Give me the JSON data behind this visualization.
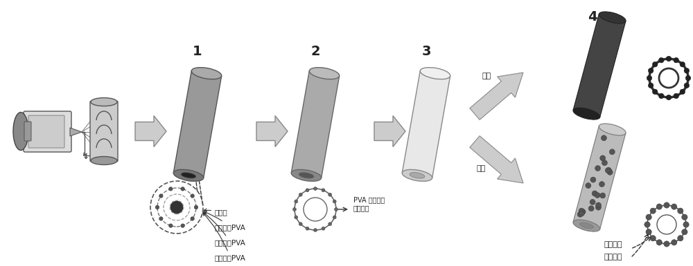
{
  "bg_color": "#ffffff",
  "step_labels": [
    "1",
    "2",
    "3",
    "4"
  ],
  "label_air": "空气",
  "label_hydrogen": "氢气",
  "label_pva_migrate": "PVA 和无机盐\n一起迁移",
  "label_inorganic_salt": "无机盐",
  "label_low_mw_pva": "低分子量PVA",
  "label_mid_mw_pva": "中分子量PVA",
  "label_high_mw_pva": "高分子量PVA",
  "label_nanoparticle": "纳米晶粒",
  "label_carbon_tube": "超薄碳管",
  "text_color": "#222222"
}
